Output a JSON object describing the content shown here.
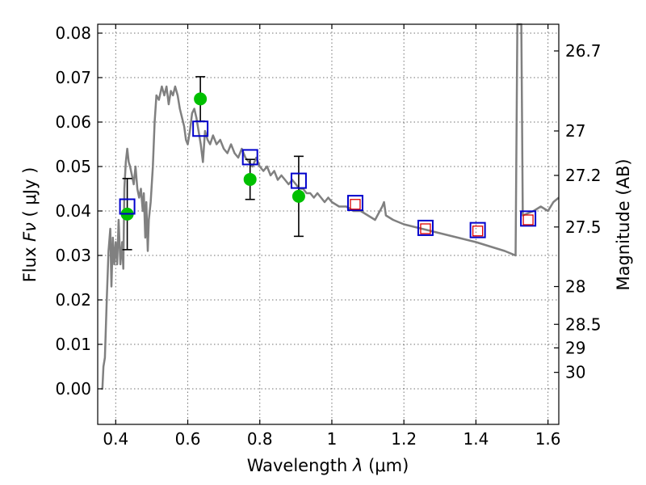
{
  "chart_data": {
    "type": "scatter",
    "xlabel": "Wavelength",
    "xlabel_symbol": "λ",
    "xlabel_unit": "(μm)",
    "ylabel": "Flux",
    "ylabel_symbol": "Fν",
    "ylabel_unit": "( μJy )",
    "y2label": "Magnitude (AB)",
    "xlim": [
      0.35,
      1.63
    ],
    "ylim": [
      -0.008,
      0.082
    ],
    "grid": true,
    "x_ticks": [
      {
        "value": 0.4,
        "label": "0.4"
      },
      {
        "value": 0.6,
        "label": "0.6"
      },
      {
        "value": 0.8,
        "label": "0.8"
      },
      {
        "value": 1.0,
        "label": "1"
      },
      {
        "value": 1.2,
        "label": "1.2"
      },
      {
        "value": 1.4,
        "label": "1.4"
      },
      {
        "value": 1.6,
        "label": "1.6"
      }
    ],
    "y_ticks": [
      {
        "value": 0.0,
        "label": "0.00"
      },
      {
        "value": 0.01,
        "label": "0.01"
      },
      {
        "value": 0.02,
        "label": "0.02"
      },
      {
        "value": 0.03,
        "label": "0.03"
      },
      {
        "value": 0.04,
        "label": "0.04"
      },
      {
        "value": 0.05,
        "label": "0.05"
      },
      {
        "value": 0.06,
        "label": "0.06"
      },
      {
        "value": 0.07,
        "label": "0.07"
      },
      {
        "value": 0.08,
        "label": "0.08"
      }
    ],
    "y2_ticks": [
      {
        "label": "26.7",
        "flux": 0.076
      },
      {
        "label": "27",
        "flux": 0.058
      },
      {
        "label": "27.2",
        "flux": 0.048
      },
      {
        "label": "27.5",
        "flux": 0.0364
      },
      {
        "label": "28",
        "flux": 0.023
      },
      {
        "label": "28.5",
        "flux": 0.0145
      },
      {
        "label": "29",
        "flux": 0.0092
      },
      {
        "label": "30",
        "flux": 0.0037
      }
    ],
    "model_sed": {
      "color": "#808080",
      "points": [
        [
          0.36,
          0.0
        ],
        [
          0.363,
          0.0
        ],
        [
          0.366,
          0.005
        ],
        [
          0.37,
          0.007
        ],
        [
          0.375,
          0.02
        ],
        [
          0.38,
          0.031
        ],
        [
          0.385,
          0.036
        ],
        [
          0.388,
          0.023
        ],
        [
          0.392,
          0.034
        ],
        [
          0.396,
          0.028
        ],
        [
          0.4,
          0.033
        ],
        [
          0.404,
          0.028
        ],
        [
          0.408,
          0.038
        ],
        [
          0.413,
          0.028
        ],
        [
          0.418,
          0.033
        ],
        [
          0.421,
          0.027
        ],
        [
          0.424,
          0.045
        ],
        [
          0.428,
          0.051
        ],
        [
          0.432,
          0.054
        ],
        [
          0.436,
          0.051
        ],
        [
          0.44,
          0.05
        ],
        [
          0.445,
          0.048
        ],
        [
          0.45,
          0.046
        ],
        [
          0.455,
          0.05
        ],
        [
          0.46,
          0.045
        ],
        [
          0.465,
          0.043
        ],
        [
          0.47,
          0.045
        ],
        [
          0.475,
          0.04
        ],
        [
          0.478,
          0.044
        ],
        [
          0.482,
          0.034
        ],
        [
          0.485,
          0.042
        ],
        [
          0.489,
          0.031
        ],
        [
          0.492,
          0.038
        ],
        [
          0.497,
          0.042
        ],
        [
          0.503,
          0.05
        ],
        [
          0.508,
          0.06
        ],
        [
          0.513,
          0.066
        ],
        [
          0.52,
          0.065
        ],
        [
          0.528,
          0.068
        ],
        [
          0.535,
          0.066
        ],
        [
          0.541,
          0.068
        ],
        [
          0.547,
          0.064
        ],
        [
          0.553,
          0.067
        ],
        [
          0.559,
          0.066
        ],
        [
          0.565,
          0.068
        ],
        [
          0.572,
          0.066
        ],
        [
          0.578,
          0.063
        ],
        [
          0.584,
          0.061
        ],
        [
          0.59,
          0.059
        ],
        [
          0.595,
          0.056
        ],
        [
          0.6,
          0.055
        ],
        [
          0.606,
          0.058
        ],
        [
          0.612,
          0.062
        ],
        [
          0.618,
          0.063
        ],
        [
          0.624,
          0.061
        ],
        [
          0.63,
          0.058
        ],
        [
          0.636,
          0.055
        ],
        [
          0.642,
          0.051
        ],
        [
          0.648,
          0.058
        ],
        [
          0.655,
          0.056
        ],
        [
          0.662,
          0.055
        ],
        [
          0.67,
          0.057
        ],
        [
          0.68,
          0.055
        ],
        [
          0.69,
          0.056
        ],
        [
          0.7,
          0.054
        ],
        [
          0.71,
          0.053
        ],
        [
          0.72,
          0.055
        ],
        [
          0.73,
          0.053
        ],
        [
          0.74,
          0.052
        ],
        [
          0.75,
          0.054
        ],
        [
          0.76,
          0.052
        ],
        [
          0.77,
          0.051
        ],
        [
          0.78,
          0.05
        ],
        [
          0.79,
          0.052
        ],
        [
          0.8,
          0.05
        ],
        [
          0.81,
          0.049
        ],
        [
          0.82,
          0.05
        ],
        [
          0.83,
          0.048
        ],
        [
          0.84,
          0.049
        ],
        [
          0.85,
          0.047
        ],
        [
          0.86,
          0.048
        ],
        [
          0.87,
          0.047
        ],
        [
          0.88,
          0.046
        ],
        [
          0.89,
          0.047
        ],
        [
          0.9,
          0.046
        ],
        [
          0.91,
          0.045
        ],
        [
          0.92,
          0.045
        ],
        [
          0.93,
          0.044
        ],
        [
          0.94,
          0.044
        ],
        [
          0.95,
          0.043
        ],
        [
          0.96,
          0.044
        ],
        [
          0.97,
          0.043
        ],
        [
          0.98,
          0.042
        ],
        [
          0.99,
          0.043
        ],
        [
          1.0,
          0.042
        ],
        [
          1.02,
          0.041
        ],
        [
          1.04,
          0.041
        ],
        [
          1.06,
          0.04
        ],
        [
          1.08,
          0.04
        ],
        [
          1.1,
          0.039
        ],
        [
          1.12,
          0.038
        ],
        [
          1.14,
          0.041
        ],
        [
          1.145,
          0.042
        ],
        [
          1.15,
          0.039
        ],
        [
          1.17,
          0.038
        ],
        [
          1.2,
          0.037
        ],
        [
          1.25,
          0.036
        ],
        [
          1.3,
          0.035
        ],
        [
          1.35,
          0.034
        ],
        [
          1.4,
          0.033
        ],
        [
          1.44,
          0.032
        ],
        [
          1.48,
          0.031
        ],
        [
          1.51,
          0.03
        ],
        [
          1.515,
          0.085
        ],
        [
          1.526,
          0.085
        ],
        [
          1.53,
          0.039
        ],
        [
          1.56,
          0.04
        ],
        [
          1.58,
          0.041
        ],
        [
          1.6,
          0.04
        ],
        [
          1.615,
          0.042
        ],
        [
          1.63,
          0.043
        ]
      ]
    },
    "observed_photometry": {
      "color": "#00c000",
      "points": [
        {
          "x": 0.432,
          "y": 0.0393,
          "err_low": 0.008,
          "err_high": 0.008
        },
        {
          "x": 0.635,
          "y": 0.0652,
          "err_low": 0.005,
          "err_high": 0.005
        },
        {
          "x": 0.773,
          "y": 0.0471,
          "err_low": 0.0045,
          "err_high": 0.0045
        },
        {
          "x": 0.908,
          "y": 0.0433,
          "err_low": 0.009,
          "err_high": 0.009
        }
      ]
    },
    "model_photometry": {
      "color": "#0000cc",
      "points": [
        {
          "x": 0.432,
          "y": 0.041
        },
        {
          "x": 0.635,
          "y": 0.0585
        },
        {
          "x": 0.773,
          "y": 0.0521
        },
        {
          "x": 0.908,
          "y": 0.0468
        },
        {
          "x": 1.065,
          "y": 0.0418
        },
        {
          "x": 1.26,
          "y": 0.0362
        },
        {
          "x": 1.405,
          "y": 0.0357
        },
        {
          "x": 1.545,
          "y": 0.0383
        }
      ]
    },
    "nir_photometry": {
      "color": "#dd0000",
      "points": [
        {
          "x": 1.065,
          "y": 0.0415
        },
        {
          "x": 1.26,
          "y": 0.036
        },
        {
          "x": 1.405,
          "y": 0.0355
        },
        {
          "x": 1.545,
          "y": 0.038
        }
      ]
    }
  }
}
